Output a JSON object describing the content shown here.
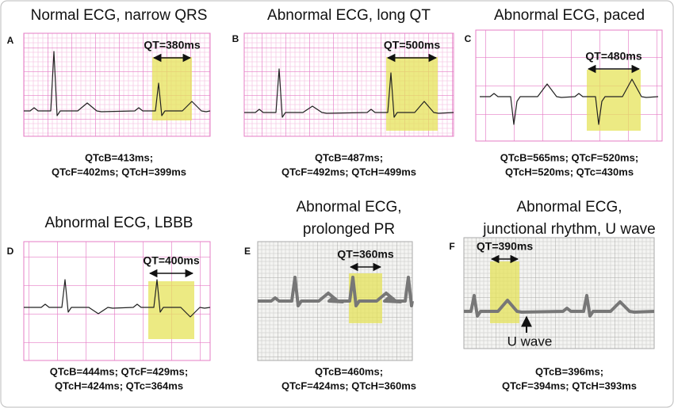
{
  "panels": [
    {
      "letter": "A",
      "title_lines": [
        "Normal ECG, narrow QRS"
      ],
      "qt": "QT=380ms",
      "qtc_lines": [
        "QTcB=413ms;",
        "QTcF=402ms; QTcH=399ms"
      ]
    },
    {
      "letter": "B",
      "title_lines": [
        "Abnormal ECG, long QT"
      ],
      "qt": "QT=500ms",
      "qtc_lines": [
        "QTcB=487ms;",
        "QTcF=492ms; QTcH=499ms"
      ]
    },
    {
      "letter": "C",
      "title_lines": [
        "Abnormal ECG, paced"
      ],
      "qt": "QT=480ms",
      "qtc_lines": [
        "QTcB=565ms; QTcF=520ms;",
        "QTcH=520ms; QTc=430ms"
      ]
    },
    {
      "letter": "D",
      "title_lines": [
        "Abnormal ECG, LBBB"
      ],
      "qt": "QT=400ms",
      "qtc_lines": [
        "QTcB=444ms; QTcF=429ms;",
        "QTcH=424ms; QTc=364ms"
      ]
    },
    {
      "letter": "E",
      "title_lines": [
        "Abnormal ECG,",
        "prolonged PR"
      ],
      "qt": "QT=360ms",
      "qtc_lines": [
        "QTcB=460ms;",
        "QTcF=424ms; QTcH=360ms"
      ]
    },
    {
      "letter": "F",
      "title_lines": [
        "Abnormal ECG,",
        "junctional rhythm, U wave"
      ],
      "qt": "QT=390ms",
      "qtc_lines": [
        "QTcB=396ms;",
        "QTcF=394ms; QTcH=393ms"
      ],
      "annotation": "U wave"
    }
  ]
}
